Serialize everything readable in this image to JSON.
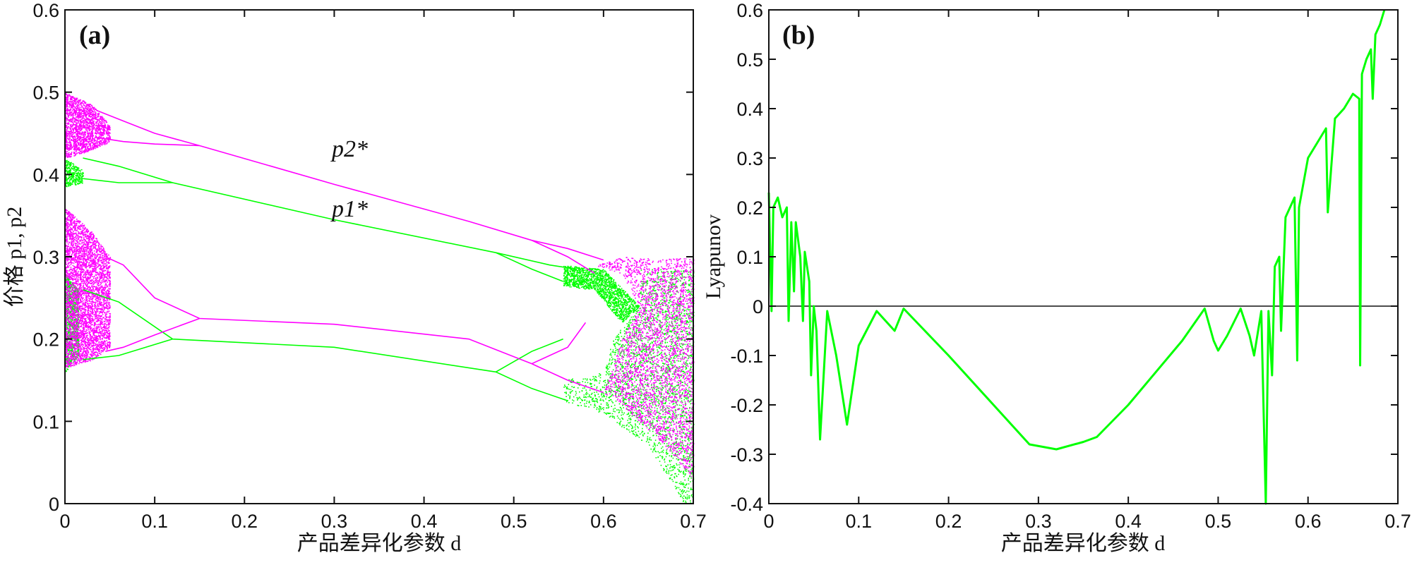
{
  "colors": {
    "p2": "#ff00ff",
    "p1": "#00ff00",
    "axis": "#111111"
  },
  "chart_data": [
    {
      "type": "scatter",
      "panel_label": "(a)",
      "title": "",
      "xlabel": "产品差异化参数 d",
      "ylabel": "价格 p1, p2",
      "xlim": [
        0,
        0.7
      ],
      "ylim": [
        0,
        0.6
      ],
      "xticks": [
        "0",
        "0.1",
        "0.2",
        "0.3",
        "0.4",
        "0.5",
        "0.6",
        "0.7"
      ],
      "yticks": [
        "0",
        "0.1",
        "0.2",
        "0.3",
        "0.4",
        "0.5",
        "0.6"
      ],
      "annotations": {
        "p2_star": "p2*",
        "p1_star": "p1*"
      },
      "series": [
        {
          "name": "p2",
          "color": "#ff00ff",
          "branches": [
            [
              [
                0.035,
                0.478
              ],
              [
                0.065,
                0.465
              ],
              [
                0.1,
                0.45
              ],
              [
                0.15,
                0.435
              ],
              [
                0.3,
                0.388
              ],
              [
                0.45,
                0.343
              ],
              [
                0.52,
                0.32
              ],
              [
                0.56,
                0.31
              ],
              [
                0.6,
                0.296
              ]
            ],
            [
              [
                0.035,
                0.445
              ],
              [
                0.065,
                0.44
              ],
              [
                0.1,
                0.437
              ],
              [
                0.15,
                0.435
              ]
            ],
            [
              [
                0.045,
                0.3
              ],
              [
                0.065,
                0.29
              ],
              [
                0.1,
                0.25
              ],
              [
                0.15,
                0.225
              ],
              [
                0.3,
                0.218
              ],
              [
                0.45,
                0.2
              ],
              [
                0.52,
                0.17
              ],
              [
                0.56,
                0.15
              ],
              [
                0.6,
                0.135
              ]
            ],
            [
              [
                0.045,
                0.185
              ],
              [
                0.065,
                0.19
              ],
              [
                0.1,
                0.205
              ],
              [
                0.15,
                0.225
              ]
            ],
            [
              [
                0.52,
                0.32
              ],
              [
                0.56,
                0.3
              ],
              [
                0.59,
                0.28
              ]
            ],
            [
              [
                0.52,
                0.17
              ],
              [
                0.56,
                0.19
              ],
              [
                0.58,
                0.22
              ]
            ]
          ],
          "chaotic_regions": [
            [
              [
                0,
                0.5
              ],
              [
                0.03,
                0.485
              ],
              [
                0.05,
                0.46
              ],
              [
                0.05,
                0.44
              ],
              [
                0.03,
                0.43
              ],
              [
                0,
                0.42
              ]
            ],
            [
              [
                0,
                0.36
              ],
              [
                0.03,
                0.33
              ],
              [
                0.05,
                0.3
              ],
              [
                0.05,
                0.19
              ],
              [
                0.03,
                0.175
              ],
              [
                0,
                0.165
              ]
            ],
            [
              [
                0.59,
                0.29
              ],
              [
                0.62,
                0.3
              ],
              [
                0.7,
                0.298
              ],
              [
                0.7,
                0.03
              ],
              [
                0.66,
                0.08
              ],
              [
                0.62,
                0.12
              ],
              [
                0.6,
                0.135
              ],
              [
                0.62,
                0.2
              ],
              [
                0.64,
                0.24
              ],
              [
                0.62,
                0.28
              ]
            ]
          ]
        },
        {
          "name": "p1",
          "color": "#00ff00",
          "branches": [
            [
              [
                0.02,
                0.42
              ],
              [
                0.06,
                0.41
              ],
              [
                0.12,
                0.39
              ],
              [
                0.3,
                0.345
              ],
              [
                0.48,
                0.305
              ],
              [
                0.54,
                0.29
              ],
              [
                0.57,
                0.285
              ]
            ],
            [
              [
                0.02,
                0.395
              ],
              [
                0.06,
                0.39
              ],
              [
                0.12,
                0.39
              ]
            ],
            [
              [
                0.02,
                0.26
              ],
              [
                0.06,
                0.245
              ],
              [
                0.12,
                0.2
              ],
              [
                0.3,
                0.19
              ],
              [
                0.48,
                0.16
              ],
              [
                0.52,
                0.14
              ],
              [
                0.56,
                0.125
              ]
            ],
            [
              [
                0.02,
                0.175
              ],
              [
                0.06,
                0.18
              ],
              [
                0.12,
                0.2
              ]
            ],
            [
              [
                0.48,
                0.305
              ],
              [
                0.52,
                0.285
              ],
              [
                0.555,
                0.27
              ]
            ],
            [
              [
                0.48,
                0.16
              ],
              [
                0.52,
                0.185
              ],
              [
                0.555,
                0.2
              ]
            ]
          ],
          "chaotic_regions": [
            [
              [
                0,
                0.42
              ],
              [
                0.02,
                0.405
              ],
              [
                0.02,
                0.39
              ],
              [
                0,
                0.385
              ]
            ],
            [
              [
                0,
                0.28
              ],
              [
                0.015,
                0.26
              ],
              [
                0.015,
                0.18
              ],
              [
                0,
                0.16
              ]
            ],
            [
              [
                0.555,
                0.29
              ],
              [
                0.6,
                0.285
              ],
              [
                0.64,
                0.24
              ],
              [
                0.62,
                0.22
              ],
              [
                0.59,
                0.26
              ],
              [
                0.555,
                0.265
              ]
            ],
            [
              [
                0.555,
                0.125
              ],
              [
                0.6,
                0.11
              ],
              [
                0.65,
                0.07
              ],
              [
                0.69,
                0.0
              ],
              [
                0.7,
                0.0
              ],
              [
                0.7,
                0.285
              ],
              [
                0.64,
                0.285
              ],
              [
                0.64,
                0.24
              ],
              [
                0.61,
                0.2
              ],
              [
                0.6,
                0.16
              ],
              [
                0.555,
                0.15
              ]
            ]
          ]
        }
      ]
    },
    {
      "type": "line",
      "panel_label": "(b)",
      "title": "",
      "xlabel": "产品差异化参数 d",
      "ylabel": "Lyapunov",
      "xlim": [
        0,
        0.7
      ],
      "ylim": [
        -0.4,
        0.6
      ],
      "xticks": [
        "0",
        "0.1",
        "0.2",
        "0.3",
        "0.4",
        "0.5",
        "0.6",
        "0.7"
      ],
      "yticks": [
        "-0.4",
        "-0.3",
        "-0.2",
        "-0.1",
        "0",
        "0.1",
        "0.2",
        "0.3",
        "0.4",
        "0.5",
        "0.6"
      ],
      "reference_line": 0,
      "series": [
        {
          "name": "Lyapunov",
          "color": "#00ff00",
          "x": [
            0,
            0.003,
            0.005,
            0.01,
            0.015,
            0.02,
            0.022,
            0.025,
            0.028,
            0.03,
            0.035,
            0.038,
            0.04,
            0.045,
            0.047,
            0.05,
            0.053,
            0.057,
            0.065,
            0.075,
            0.087,
            0.1,
            0.12,
            0.14,
            0.15,
            0.2,
            0.25,
            0.29,
            0.32,
            0.35,
            0.365,
            0.4,
            0.46,
            0.485,
            0.495,
            0.5,
            0.51,
            0.525,
            0.535,
            0.54,
            0.548,
            0.553,
            0.556,
            0.56,
            0.563,
            0.568,
            0.57,
            0.575,
            0.58,
            0.585,
            0.588,
            0.59,
            0.6,
            0.61,
            0.62,
            0.622,
            0.63,
            0.64,
            0.65,
            0.657,
            0.658,
            0.66,
            0.665,
            0.67,
            0.672,
            0.675,
            0.68,
            0.685
          ],
          "y": [
            0.23,
            -0.01,
            0.2,
            0.22,
            0.18,
            0.2,
            -0.03,
            0.17,
            0.03,
            0.17,
            0.1,
            -0.03,
            0.11,
            0.05,
            -0.14,
            0,
            -0.05,
            -0.27,
            -0.01,
            -0.1,
            -0.24,
            -0.08,
            -0.01,
            -0.05,
            -0.005,
            -0.1,
            -0.2,
            -0.28,
            -0.29,
            -0.275,
            -0.265,
            -0.2,
            -0.07,
            -0.005,
            -0.07,
            -0.09,
            -0.06,
            -0.005,
            -0.06,
            -0.1,
            -0.01,
            -0.4,
            -0.01,
            -0.14,
            0.08,
            0.1,
            -0.05,
            0.18,
            0.2,
            0.22,
            -0.11,
            0.2,
            0.3,
            0.33,
            0.36,
            0.19,
            0.38,
            0.4,
            0.43,
            0.42,
            -0.12,
            0.47,
            0.5,
            0.52,
            0.42,
            0.55,
            0.57,
            0.6
          ]
        }
      ]
    }
  ]
}
